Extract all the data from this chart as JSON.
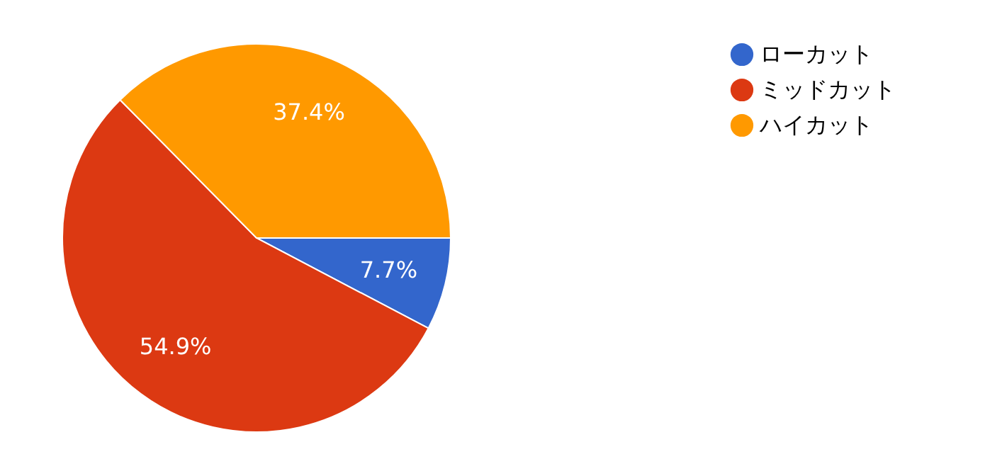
{
  "chart_data": {
    "type": "pie",
    "categories": [
      "ローカット",
      "ミッドカット",
      "ハイカット"
    ],
    "values": [
      7.7,
      54.9,
      37.4
    ],
    "colors": [
      "#3366cc",
      "#dc3912",
      "#ff9900"
    ],
    "value_labels": [
      "7.7%",
      "54.9%",
      "37.4%"
    ],
    "legend": "top right"
  }
}
